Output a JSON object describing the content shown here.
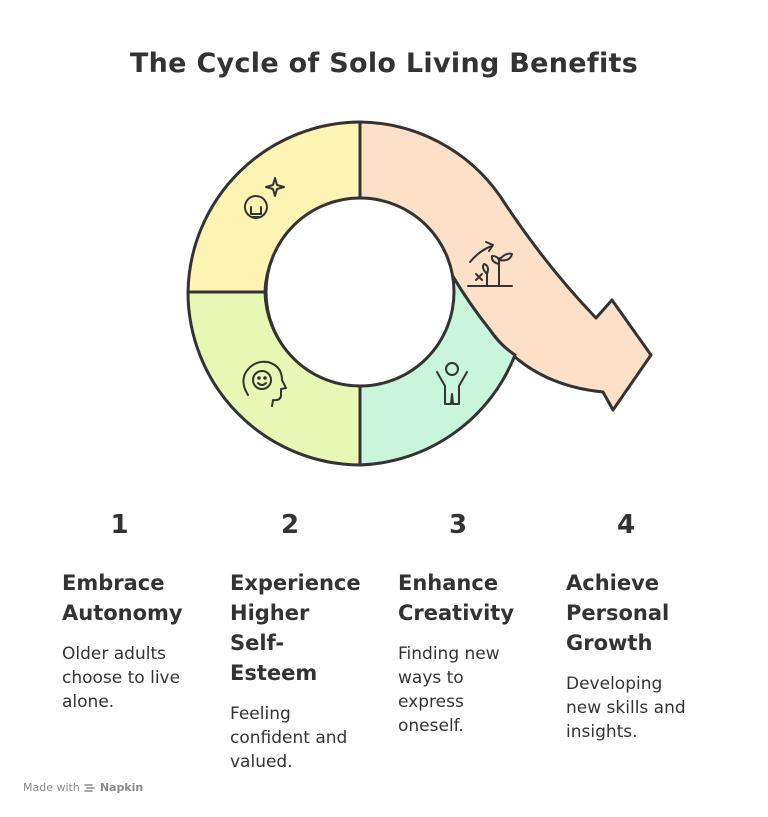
{
  "title": "The Cycle of Solo Living Benefits",
  "colors": {
    "segment_1": "#fdf3b3",
    "segment_2": "#e8f7b3",
    "segment_3": "#c9f5dc",
    "segment_4": "#fde0c8",
    "stroke": "#333333"
  },
  "segments": [
    {
      "icon": "lightbulb-icon"
    },
    {
      "icon": "smiling-head-icon"
    },
    {
      "icon": "person-raising-arms-icon"
    },
    {
      "icon": "growing-plant-arrow-icon"
    }
  ],
  "steps": [
    {
      "number": "1",
      "title": "Embrace\nAutonomy",
      "description": "Older adults\nchoose to live\nalone."
    },
    {
      "number": "2",
      "title": "Experience\nHigher\nSelf-\nEsteem",
      "description": "Feeling\nconfident and\nvalued."
    },
    {
      "number": "3",
      "title": "Enhance\nCreativity",
      "description": "Finding new\nways to\nexpress\noneself."
    },
    {
      "number": "4",
      "title": "Achieve\nPersonal\nGrowth",
      "description": "Developing\nnew skills and\ninsights."
    }
  ],
  "footer": {
    "made_with": "Made with",
    "brand": "Napkin"
  }
}
